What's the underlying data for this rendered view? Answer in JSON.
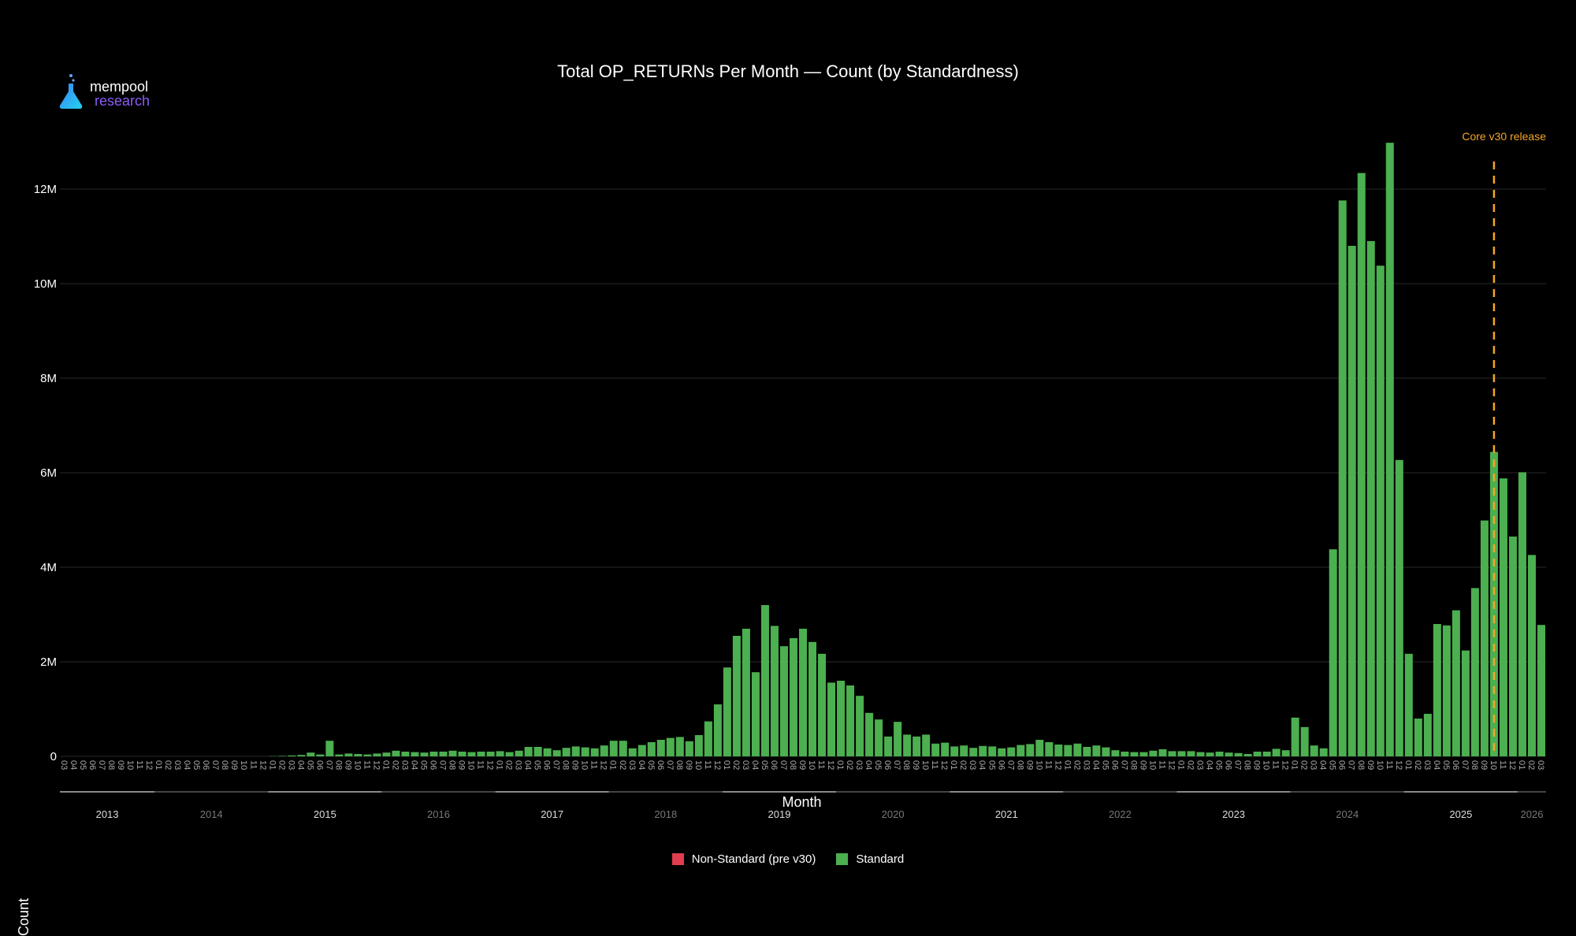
{
  "logo": {
    "line1": "mempool",
    "line2": "research"
  },
  "colors": {
    "standard": "#4caf50",
    "nonstandard": "#e23c4f",
    "release": "#f5a623",
    "grid": "#2a2a2a"
  },
  "chart_data": {
    "type": "bar",
    "title": "Total OP_RETURNs Per Month — Count (by Standardness)",
    "xlabel": "Month",
    "ylabel": "Count",
    "ylim": [
      0,
      13500000
    ],
    "yticks": [
      0,
      2000000,
      4000000,
      6000000,
      8000000,
      10000000,
      12000000
    ],
    "ytick_labels": [
      "0",
      "2M",
      "4M",
      "6M",
      "8M",
      "10M",
      "12M"
    ],
    "grid": true,
    "legend_position": "bottom-center",
    "start_month": "2013-03",
    "years": [
      "2013",
      "2014",
      "2015",
      "2016",
      "2017",
      "2018",
      "2019",
      "2020",
      "2021",
      "2022",
      "2023",
      "2024",
      "2025",
      "2026"
    ],
    "annotation": {
      "label": "Core v30 release",
      "month": "2025-10"
    },
    "series": [
      {
        "name": "Non-Standard (pre v30)",
        "values": []
      },
      {
        "name": "Standard",
        "values": [
          0,
          0,
          0,
          0,
          0,
          0,
          0,
          0,
          0,
          0,
          0,
          0,
          0,
          0,
          0,
          0,
          0,
          0,
          0,
          0,
          0,
          0,
          5000,
          10000,
          20000,
          30000,
          80000,
          40000,
          330000,
          40000,
          60000,
          50000,
          40000,
          60000,
          80000,
          120000,
          100000,
          90000,
          80000,
          100000,
          100000,
          120000,
          100000,
          90000,
          100000,
          100000,
          110000,
          90000,
          120000,
          200000,
          200000,
          170000,
          130000,
          180000,
          210000,
          190000,
          170000,
          230000,
          330000,
          330000,
          170000,
          240000,
          300000,
          350000,
          390000,
          410000,
          320000,
          450000,
          740000,
          1100000,
          1880000,
          2550000,
          2700000,
          1780000,
          3200000,
          2760000,
          2330000,
          2500000,
          2700000,
          2420000,
          2170000,
          1560000,
          1600000,
          1500000,
          1280000,
          920000,
          780000,
          420000,
          730000,
          460000,
          420000,
          460000,
          270000,
          290000,
          210000,
          230000,
          180000,
          220000,
          210000,
          170000,
          190000,
          240000,
          260000,
          350000,
          300000,
          250000,
          240000,
          270000,
          200000,
          230000,
          190000,
          130000,
          100000,
          90000,
          90000,
          120000,
          150000,
          110000,
          110000,
          110000,
          90000,
          80000,
          100000,
          80000,
          70000,
          50000,
          100000,
          100000,
          160000,
          130000,
          820000,
          620000,
          230000,
          170000,
          4380000,
          11760000,
          10800000,
          12340000,
          10900000,
          10380000,
          12980000,
          6270000,
          2170000,
          800000,
          900000,
          2800000,
          2770000,
          3090000,
          2240000,
          3560000,
          4990000,
          6440000,
          5880000,
          4650000,
          6010000,
          4260000,
          2780000
        ]
      }
    ]
  }
}
